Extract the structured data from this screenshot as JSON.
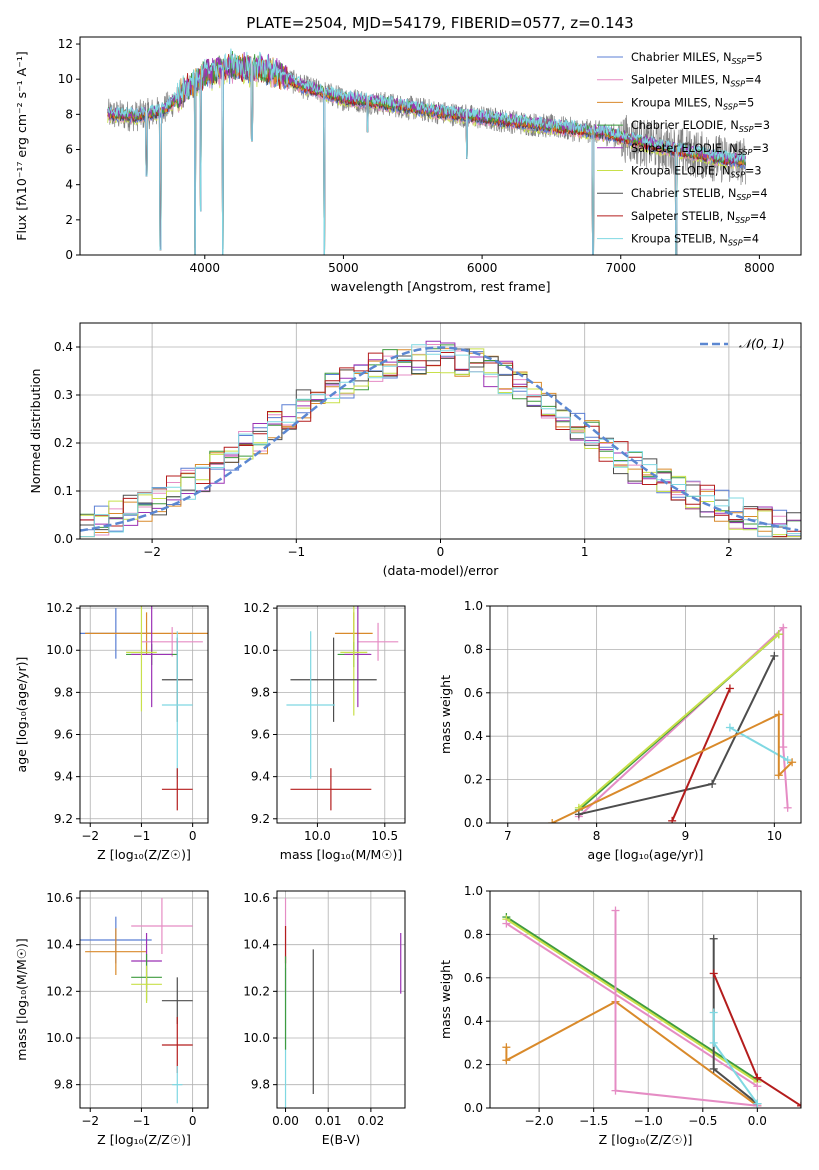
{
  "figure_title": "PLATE=2504, MJD=54179, FIBERID=0577, z=0.143",
  "colors": {
    "Chabrier MILES": "#5b7fd4",
    "Salpeter MILES": "#e58cc4",
    "Kroupa MILES": "#d98a2b",
    "Chabrier ELODIE": "#3f9b3f",
    "Salpeter ELODIE": "#9b32b5",
    "Kroupa ELODIE": "#c8e04a",
    "Chabrier STELIB": "#4d4d4d",
    "Salpeter STELIB": "#b41d1d",
    "Kroupa STELIB": "#7fd8e2",
    "data": "#808080",
    "normal": "#5b87d1"
  },
  "chart_data": [
    {
      "id": "spectrum",
      "type": "line",
      "xlabel": "wavelength [Angstrom, rest frame]",
      "ylabel": "Flux [fλ10⁻¹⁷ erg cm⁻² s⁻¹ A⁻¹]",
      "xlim": [
        3100,
        8300
      ],
      "ylim": [
        0,
        12.4
      ],
      "xticks": [
        "4000",
        "5000",
        "6000",
        "7000",
        "8000"
      ],
      "yticks": [
        "0",
        "2",
        "4",
        "6",
        "8",
        "10",
        "12"
      ],
      "legend_position": "top-right",
      "legend": [
        {
          "name": "Chabrier MILES",
          "nssp": "5"
        },
        {
          "name": "Salpeter MILES",
          "nssp": "4"
        },
        {
          "name": "Kroupa MILES",
          "nssp": "5"
        },
        {
          "name": "Chabrier ELODIE",
          "nssp": "3"
        },
        {
          "name": "Salpeter ELODIE",
          "nssp": "3"
        },
        {
          "name": "Kroupa ELODIE",
          "nssp": "3"
        },
        {
          "name": "Chabrier STELIB",
          "nssp": "4"
        },
        {
          "name": "Salpeter STELIB",
          "nssp": "4"
        },
        {
          "name": "Kroupa STELIB",
          "nssp": "4"
        }
      ],
      "continuum": [
        [
          3300,
          8.0
        ],
        [
          3500,
          7.9
        ],
        [
          3700,
          8.2
        ],
        [
          3850,
          9.3
        ],
        [
          4000,
          10.3
        ],
        [
          4200,
          10.7
        ],
        [
          4500,
          10.4
        ],
        [
          4700,
          9.6
        ],
        [
          5000,
          8.9
        ],
        [
          5300,
          8.6
        ],
        [
          5700,
          8.1
        ],
        [
          6100,
          7.7
        ],
        [
          6500,
          7.3
        ],
        [
          6900,
          6.9
        ],
        [
          7300,
          6.1
        ],
        [
          7700,
          5.5
        ],
        [
          7900,
          5.3
        ]
      ],
      "absorption_features": [
        [
          3580,
          4.5
        ],
        [
          3680,
          0.3
        ],
        [
          3930,
          0.0
        ],
        [
          3970,
          2.5
        ],
        [
          4130,
          0.0
        ],
        [
          4340,
          6.5
        ],
        [
          4862,
          0.0
        ],
        [
          5175,
          7.0
        ],
        [
          5890,
          5.5
        ],
        [
          6800,
          0.0
        ],
        [
          7400,
          0.0
        ]
      ]
    },
    {
      "id": "residuals",
      "type": "step",
      "xlabel": "(data-model)/error",
      "ylabel": "Normed distribution",
      "xlim": [
        -2.5,
        2.5
      ],
      "ylim": [
        0,
        0.45
      ],
      "xticks": [
        "−2",
        "−1",
        "0",
        "1",
        "2"
      ],
      "yticks": [
        "0.0",
        "0.1",
        "0.2",
        "0.3",
        "0.4"
      ],
      "legend_position": "top-right",
      "legend_label": "𝒩(0, 1)",
      "bin_width": 0.1,
      "histogram_envelope": [
        [
          -2.5,
          0.02
        ],
        [
          -2.2,
          0.05
        ],
        [
          -1.9,
          0.09
        ],
        [
          -1.6,
          0.14
        ],
        [
          -1.3,
          0.2
        ],
        [
          -1.0,
          0.27
        ],
        [
          -0.7,
          0.32
        ],
        [
          -0.4,
          0.36
        ],
        [
          -0.1,
          0.38
        ],
        [
          0.2,
          0.37
        ],
        [
          0.5,
          0.33
        ],
        [
          0.8,
          0.27
        ],
        [
          1.1,
          0.2
        ],
        [
          1.4,
          0.14
        ],
        [
          1.7,
          0.1
        ],
        [
          2.0,
          0.06
        ],
        [
          2.3,
          0.03
        ],
        [
          2.5,
          0.02
        ]
      ]
    },
    {
      "id": "age_vs_Z",
      "type": "errorbar",
      "xlabel": "Z [log₁₀(Z/Z☉)]",
      "ylabel": "age  [log₁₀(age/yr)]",
      "xlim": [
        -2.2,
        0.3
      ],
      "ylim": [
        9.18,
        10.21
      ],
      "xticks": [
        "−2",
        "−1",
        "0"
      ],
      "yticks": [
        "9.2",
        "9.4",
        "9.6",
        "9.8",
        "10.0",
        "10.2"
      ],
      "points": [
        {
          "series": "Chabrier MILES",
          "x": -1.5,
          "xerr": 0.7,
          "y": 10.08,
          "yerr": 0.12
        },
        {
          "series": "Kroupa MILES",
          "x": -0.9,
          "xerr": 1.2,
          "y": 10.08,
          "yerr": 0.1
        },
        {
          "series": "Salpeter MILES",
          "x": -0.4,
          "xerr": 0.6,
          "y": 10.04,
          "yerr": 0.07
        },
        {
          "series": "Chabrier ELODIE",
          "x": -0.8,
          "xerr": 0.5,
          "y": 9.98,
          "yerr": 0.05
        },
        {
          "series": "Salpeter ELODIE",
          "x": -0.8,
          "xerr": 0.4,
          "y": 9.98,
          "yerr": 0.25
        },
        {
          "series": "Kroupa ELODIE",
          "x": -1.0,
          "xerr": 0.3,
          "y": 9.99,
          "yerr": 0.28
        },
        {
          "series": "Chabrier STELIB",
          "x": -0.3,
          "xerr": 0.3,
          "y": 9.86,
          "yerr": 0.2
        },
        {
          "series": "Kroupa STELIB",
          "x": -0.3,
          "xerr": 0.3,
          "y": 9.74,
          "yerr": 0.35
        },
        {
          "series": "Salpeter STELIB",
          "x": -0.3,
          "xerr": 0.3,
          "y": 9.34,
          "yerr": 0.1
        }
      ]
    },
    {
      "id": "age_vs_mass",
      "type": "errorbar",
      "xlabel": "mass [log₁₀(M/M☉)]",
      "ylabel": "",
      "xlim": [
        9.7,
        10.65
      ],
      "ylim": [
        9.18,
        10.21
      ],
      "xticks": [
        "10.0",
        "10.5"
      ],
      "yticks": [
        "9.2",
        "9.4",
        "9.6",
        "9.8",
        "10.0",
        "10.2"
      ],
      "points": [
        {
          "series": "Salpeter MILES",
          "x": 10.45,
          "xerr": 0.15,
          "y": 10.04,
          "yerr": 0.09
        },
        {
          "series": "Kroupa MILES",
          "x": 10.27,
          "xerr": 0.14,
          "y": 10.08,
          "yerr": 0.1
        },
        {
          "series": "Chabrier ELODIE",
          "x": 10.27,
          "xerr": 0.12,
          "y": 9.98,
          "yerr": 0.06
        },
        {
          "series": "Salpeter ELODIE",
          "x": 10.3,
          "xerr": 0.1,
          "y": 9.98,
          "yerr": 0.25
        },
        {
          "series": "Kroupa ELODIE",
          "x": 10.27,
          "xerr": 0.1,
          "y": 9.99,
          "yerr": 0.3
        },
        {
          "series": "Chabrier STELIB",
          "x": 10.12,
          "xerr": 0.32,
          "y": 9.86,
          "yerr": 0.2
        },
        {
          "series": "Kroupa STELIB",
          "x": 9.95,
          "xerr": 0.18,
          "y": 9.74,
          "yerr": 0.35
        },
        {
          "series": "Salpeter STELIB",
          "x": 10.1,
          "xerr": 0.3,
          "y": 9.34,
          "yerr": 0.1
        }
      ]
    },
    {
      "id": "weight_vs_age",
      "type": "line",
      "xlabel": "age  [log₁₀(age/yr)]",
      "ylabel": "mass weight",
      "xlim": [
        6.8,
        10.3
      ],
      "ylim": [
        0,
        1
      ],
      "xticks": [
        "7",
        "8",
        "9",
        "10"
      ],
      "yticks": [
        "0.0",
        "0.2",
        "0.4",
        "0.6",
        "0.8",
        "1.0"
      ],
      "series": [
        {
          "name": "Salpeter MILES",
          "x": [
            7.8,
            10.1,
            10.1,
            10.15
          ],
          "y": [
            0.03,
            0.9,
            0.35,
            0.07
          ]
        },
        {
          "name": "Chabrier ELODIE",
          "x": [
            7.8,
            10.05
          ],
          "y": [
            0.06,
            0.87
          ]
        },
        {
          "name": "Kroupa ELODIE",
          "x": [
            7.8,
            10.05
          ],
          "y": [
            0.07,
            0.87
          ]
        },
        {
          "name": "Chabrier STELIB",
          "x": [
            7.8,
            9.3,
            10.0
          ],
          "y": [
            0.04,
            0.18,
            0.77
          ]
        },
        {
          "name": "Salpeter STELIB",
          "x": [
            8.85,
            9.5
          ],
          "y": [
            0.01,
            0.62
          ]
        },
        {
          "name": "Kroupa STELIB",
          "x": [
            9.5,
            10.15
          ],
          "y": [
            0.44,
            0.29
          ]
        },
        {
          "name": "Kroupa MILES",
          "x": [
            7.5,
            10.05,
            10.05,
            10.2
          ],
          "y": [
            0.0,
            0.5,
            0.22,
            0.28
          ]
        }
      ]
    },
    {
      "id": "mass_vs_Z",
      "type": "errorbar",
      "xlabel": "Z [log₁₀(Z/Z☉)]",
      "ylabel": "mass [log₁₀(M/M☉)]",
      "xlim": [
        -2.2,
        0.3
      ],
      "ylim": [
        9.7,
        10.63
      ],
      "xticks": [
        "−2",
        "−1",
        "0"
      ],
      "yticks": [
        "9.8",
        "10.0",
        "10.2",
        "10.4",
        "10.6"
      ],
      "points": [
        {
          "series": "Chabrier MILES",
          "x": -1.5,
          "xerr": 0.7,
          "y": 10.42,
          "yerr": 0.1
        },
        {
          "series": "Kroupa MILES",
          "x": -1.5,
          "xerr": 0.6,
          "y": 10.37,
          "yerr": 0.1
        },
        {
          "series": "Salpeter MILES",
          "x": -0.6,
          "xerr": 0.6,
          "y": 10.48,
          "yerr": 0.12
        },
        {
          "series": "Salpeter ELODIE",
          "x": -0.9,
          "xerr": 0.3,
          "y": 10.33,
          "yerr": 0.12
        },
        {
          "series": "Chabrier ELODIE",
          "x": -0.9,
          "xerr": 0.3,
          "y": 10.26,
          "yerr": 0.1
        },
        {
          "series": "Kroupa ELODIE",
          "x": -0.9,
          "xerr": 0.3,
          "y": 10.23,
          "yerr": 0.08
        },
        {
          "series": "Chabrier STELIB",
          "x": -0.3,
          "xerr": 0.3,
          "y": 10.16,
          "yerr": 0.1
        },
        {
          "series": "Salpeter STELIB",
          "x": -0.3,
          "xerr": 0.3,
          "y": 9.97,
          "yerr": 0.12
        },
        {
          "series": "Kroupa STELIB",
          "x": -0.3,
          "xerr": 0.1,
          "y": 9.8,
          "yerr": 0.08
        }
      ]
    },
    {
      "id": "mass_vs_ebv",
      "type": "errorbar",
      "xlabel": "E(B-V)",
      "ylabel": "",
      "xlim": [
        -0.002,
        0.028
      ],
      "ylim": [
        9.7,
        10.63
      ],
      "xticks": [
        "0.00",
        "0.01",
        "0.02"
      ],
      "yticks": [
        "9.8",
        "10.0",
        "10.2",
        "10.4",
        "10.6"
      ],
      "points": [
        {
          "series": "Salpeter MILES",
          "x": 0.0,
          "xerr": 0,
          "y": 10.4,
          "yerr": 0.2
        },
        {
          "series": "Salpeter STELIB",
          "x": 0.0,
          "xerr": 0,
          "y": 10.4,
          "yerr": 0.08
        },
        {
          "series": "Kroupa STELIB",
          "x": 0.0,
          "xerr": 0,
          "y": 10.0,
          "yerr": 0.3
        },
        {
          "series": "Chabrier ELODIE",
          "x": 0.0,
          "xerr": 0,
          "y": 10.15,
          "yerr": 0.2
        },
        {
          "series": "Chabrier STELIB",
          "x": 0.0065,
          "xerr": 0,
          "y": 10.07,
          "yerr": 0.31
        },
        {
          "series": "Salpeter ELODIE",
          "x": 0.027,
          "xerr": 0,
          "y": 10.32,
          "yerr": 0.13
        }
      ]
    },
    {
      "id": "weight_vs_Z",
      "type": "line",
      "xlabel": "Z [log₁₀(Z/Z☉)]",
      "ylabel": "mass weight",
      "xlim": [
        -2.45,
        0.4
      ],
      "ylim": [
        0,
        1
      ],
      "xticks": [
        "−2.0",
        "−1.5",
        "−1.0",
        "−0.5",
        "0.0"
      ],
      "yticks": [
        "0.0",
        "0.2",
        "0.4",
        "0.6",
        "0.8",
        "1.0"
      ],
      "series": [
        {
          "name": "Chabrier ELODIE",
          "x": [
            -2.3,
            0.0
          ],
          "y": [
            0.88,
            0.13
          ]
        },
        {
          "name": "Kroupa ELODIE",
          "x": [
            -2.3,
            0.0
          ],
          "y": [
            0.87,
            0.12
          ]
        },
        {
          "name": "Salpeter MILES",
          "x": [
            -2.3,
            0.0
          ],
          "y": [
            0.85,
            0.1
          ]
        },
        {
          "name": "Kroupa MILES",
          "x": [
            -2.3,
            -2.3,
            -1.3,
            0.0
          ],
          "y": [
            0.28,
            0.22,
            0.49,
            0.01
          ]
        },
        {
          "name": "Salpeter MILES",
          "x": [
            -1.3,
            -1.3,
            0.0
          ],
          "y": [
            0.91,
            0.08,
            0.01
          ]
        },
        {
          "name": "Chabrier STELIB",
          "x": [
            -0.4,
            -0.4,
            0.0
          ],
          "y": [
            0.78,
            0.18,
            0.02
          ]
        },
        {
          "name": "Salpeter STELIB",
          "x": [
            -0.4,
            0.0,
            0.4
          ],
          "y": [
            0.62,
            0.14,
            0.01
          ]
        },
        {
          "name": "Kroupa STELIB",
          "x": [
            -0.4,
            -0.4,
            0.0
          ],
          "y": [
            0.44,
            0.3,
            0.02
          ]
        }
      ]
    }
  ]
}
